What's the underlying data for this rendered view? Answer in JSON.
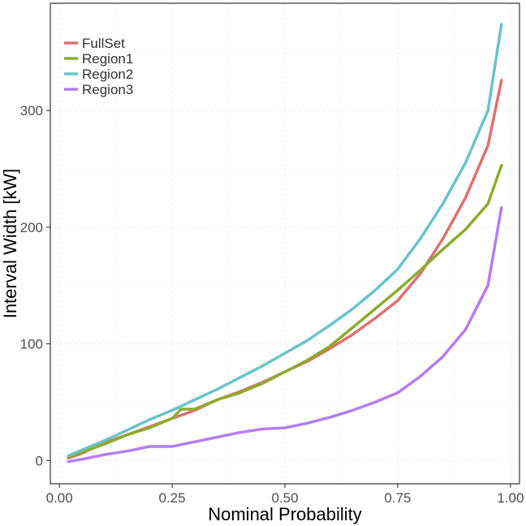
{
  "chart_data": {
    "type": "line",
    "xlabel": "Nominal Probability",
    "ylabel": "Interval Width [kW]",
    "xlim": [
      -0.02,
      1.02
    ],
    "ylim": [
      -20,
      392
    ],
    "x_ticks": [
      {
        "value": 0,
        "label": "0.00"
      },
      {
        "value": 0.25,
        "label": "0.25"
      },
      {
        "value": 0.5,
        "label": "0.50"
      },
      {
        "value": 0.75,
        "label": "0.75"
      },
      {
        "value": 1,
        "label": "1.00"
      }
    ],
    "y_ticks": [
      {
        "value": 0,
        "label": "0"
      },
      {
        "value": 100,
        "label": "100"
      },
      {
        "value": 200,
        "label": "200"
      },
      {
        "value": 300,
        "label": "300"
      }
    ],
    "grid": true,
    "legend_position": "top-left",
    "series": [
      {
        "name": "FullSet",
        "color": "#E07070",
        "points": [
          [
            0.02,
            2
          ],
          [
            0.05,
            6
          ],
          [
            0.1,
            15
          ],
          [
            0.15,
            22
          ],
          [
            0.2,
            29
          ],
          [
            0.25,
            36
          ],
          [
            0.3,
            43
          ],
          [
            0.35,
            52
          ],
          [
            0.4,
            59
          ],
          [
            0.45,
            67
          ],
          [
            0.5,
            76
          ],
          [
            0.55,
            85
          ],
          [
            0.6,
            96
          ],
          [
            0.65,
            108
          ],
          [
            0.7,
            122
          ],
          [
            0.75,
            137
          ],
          [
            0.8,
            160
          ],
          [
            0.85,
            190
          ],
          [
            0.9,
            225
          ],
          [
            0.95,
            270
          ],
          [
            0.98,
            326
          ]
        ]
      },
      {
        "name": "Region1",
        "color": "#8CAB2E",
        "points": [
          [
            0.02,
            3
          ],
          [
            0.05,
            7
          ],
          [
            0.1,
            14
          ],
          [
            0.15,
            22
          ],
          [
            0.2,
            28
          ],
          [
            0.25,
            36
          ],
          [
            0.27,
            44
          ],
          [
            0.3,
            44
          ],
          [
            0.35,
            52
          ],
          [
            0.4,
            58
          ],
          [
            0.45,
            66
          ],
          [
            0.5,
            76
          ],
          [
            0.55,
            86
          ],
          [
            0.6,
            98
          ],
          [
            0.65,
            114
          ],
          [
            0.7,
            130
          ],
          [
            0.75,
            146
          ],
          [
            0.8,
            163
          ],
          [
            0.85,
            181
          ],
          [
            0.9,
            198
          ],
          [
            0.95,
            220
          ],
          [
            0.98,
            253
          ]
        ]
      },
      {
        "name": "Region2",
        "color": "#6BC3C8",
        "points": [
          [
            0.02,
            4
          ],
          [
            0.05,
            9
          ],
          [
            0.1,
            17
          ],
          [
            0.15,
            26
          ],
          [
            0.2,
            35
          ],
          [
            0.25,
            43
          ],
          [
            0.3,
            52
          ],
          [
            0.35,
            61
          ],
          [
            0.4,
            71
          ],
          [
            0.45,
            81
          ],
          [
            0.5,
            92
          ],
          [
            0.55,
            103
          ],
          [
            0.6,
            116
          ],
          [
            0.65,
            130
          ],
          [
            0.7,
            146
          ],
          [
            0.75,
            164
          ],
          [
            0.8,
            190
          ],
          [
            0.85,
            220
          ],
          [
            0.9,
            255
          ],
          [
            0.95,
            300
          ],
          [
            0.98,
            374
          ]
        ]
      },
      {
        "name": "Region3",
        "color": "#B27EF2",
        "points": [
          [
            0.02,
            -1
          ],
          [
            0.05,
            1
          ],
          [
            0.1,
            5
          ],
          [
            0.15,
            8
          ],
          [
            0.2,
            12
          ],
          [
            0.25,
            12
          ],
          [
            0.3,
            16
          ],
          [
            0.35,
            20
          ],
          [
            0.4,
            24
          ],
          [
            0.45,
            27
          ],
          [
            0.5,
            28
          ],
          [
            0.55,
            32
          ],
          [
            0.6,
            37
          ],
          [
            0.65,
            43
          ],
          [
            0.7,
            50
          ],
          [
            0.75,
            58
          ],
          [
            0.8,
            72
          ],
          [
            0.85,
            89
          ],
          [
            0.9,
            112
          ],
          [
            0.95,
            150
          ],
          [
            0.98,
            217
          ]
        ]
      }
    ]
  }
}
